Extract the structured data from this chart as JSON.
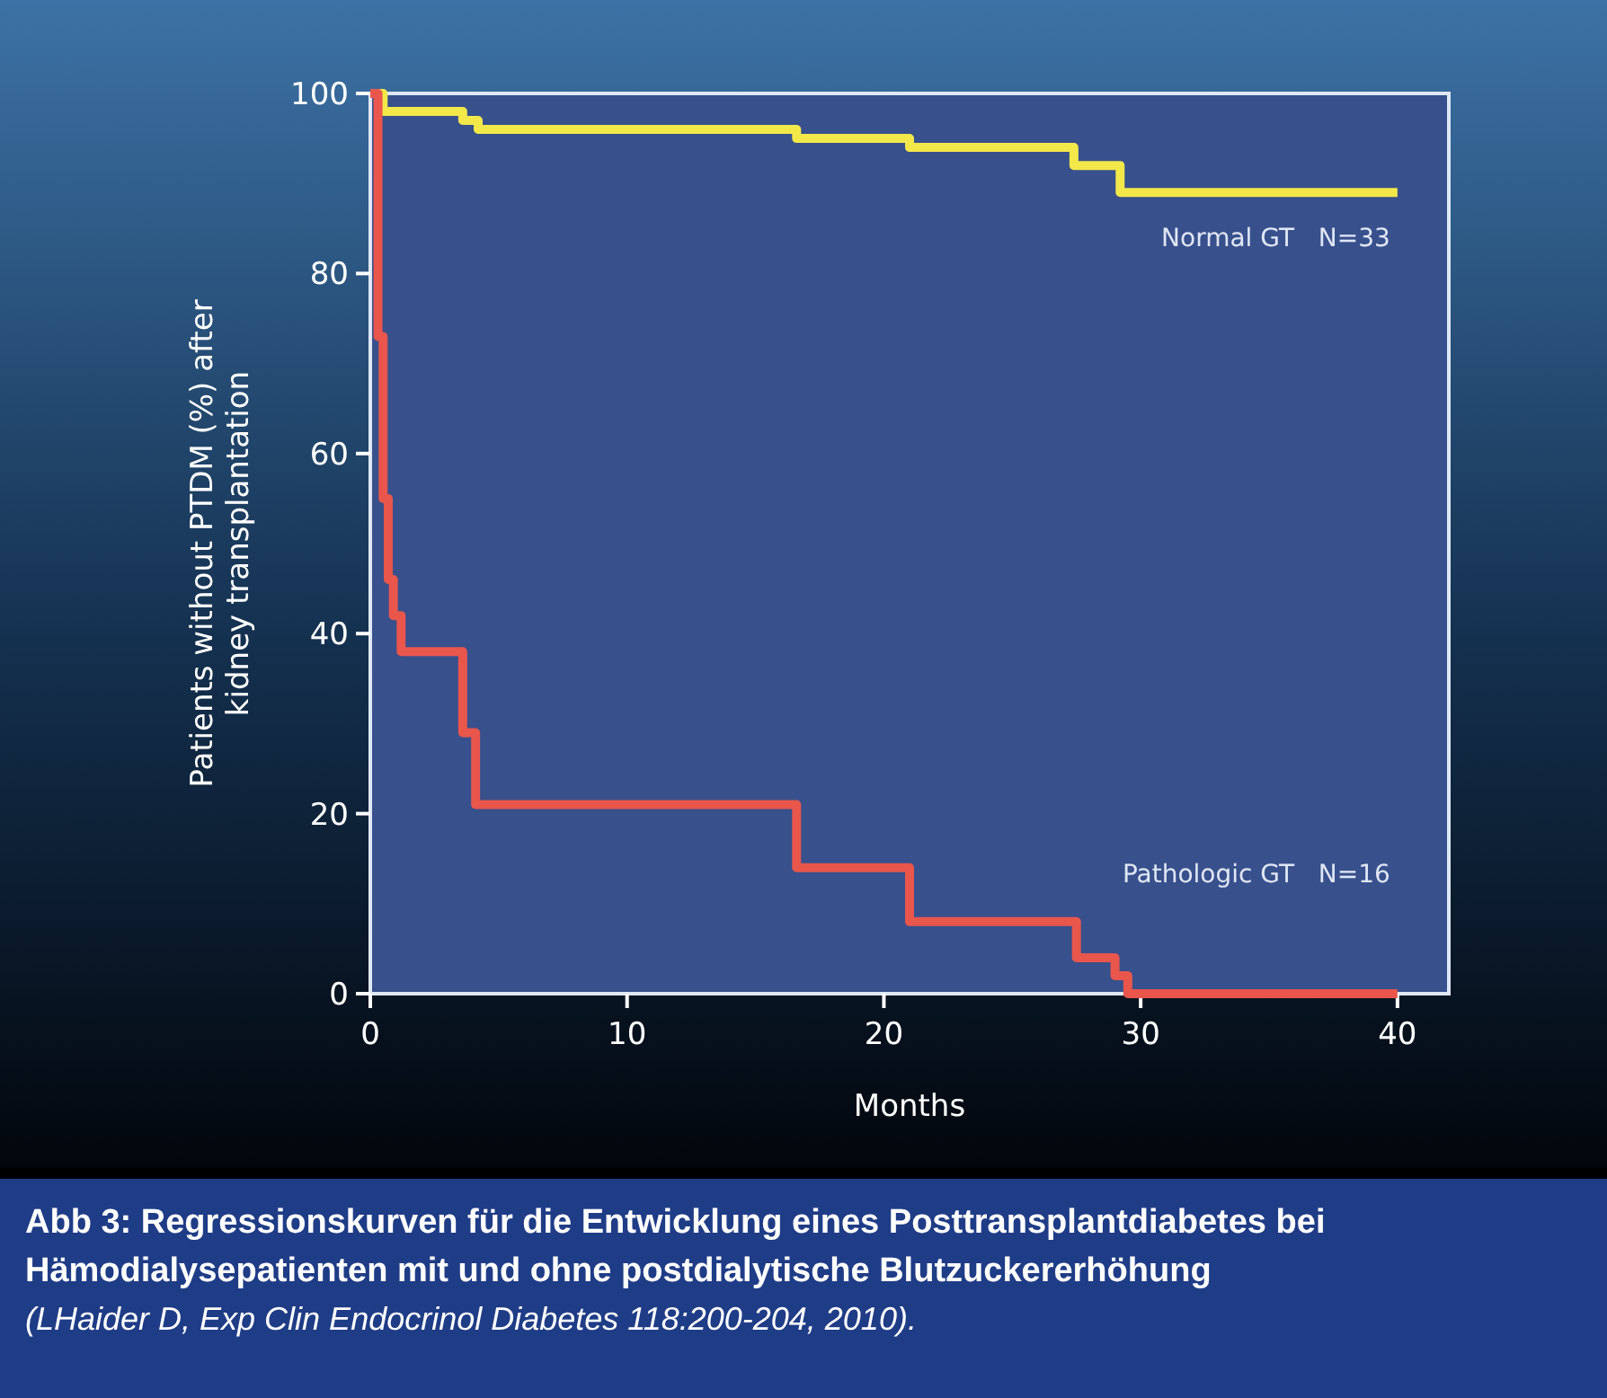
{
  "chart_data": {
    "type": "step",
    "title": "Abb 3: Regressionskurven für die Entwicklung eines Posttransplantdiabetes bei Hämodialysepatienten mit und ohne postdialytische Blutzuckererhöhung",
    "xlabel": "Months",
    "ylabel": "Patients without PTDM (%) after kidney transplantation",
    "annotations": [
      "(LHaider D, Exp Clin Endocrinol Diabetes 118:200-204, 2010)."
    ],
    "xlim": [
      0,
      42
    ],
    "xticks": [
      0,
      10,
      20,
      30,
      40
    ],
    "ylim": [
      0,
      100
    ],
    "yticks": [
      0,
      20,
      40,
      60,
      80,
      100
    ],
    "grid": false,
    "marker": "none",
    "line_style": "solid",
    "series": [
      {
        "name": "Normal GT   N=33",
        "color": "#f2e84a",
        "x": [
          0,
          0.5,
          3.6,
          4.2,
          16.6,
          21,
          27.4,
          29.2,
          40
        ],
        "values": [
          100,
          98,
          97,
          96,
          95,
          94,
          92,
          89,
          89
        ]
      },
      {
        "name": "Pathologic GT   N=16",
        "color": "#e8564c",
        "x": [
          0,
          0.3,
          0.5,
          0.7,
          0.9,
          1.2,
          3.6,
          4.1,
          16.6,
          21,
          27.5,
          29,
          29.5,
          40
        ],
        "values": [
          100,
          73,
          55,
          46,
          42,
          38,
          29,
          21,
          14,
          8,
          4,
          2,
          0,
          0
        ]
      }
    ]
  }
}
